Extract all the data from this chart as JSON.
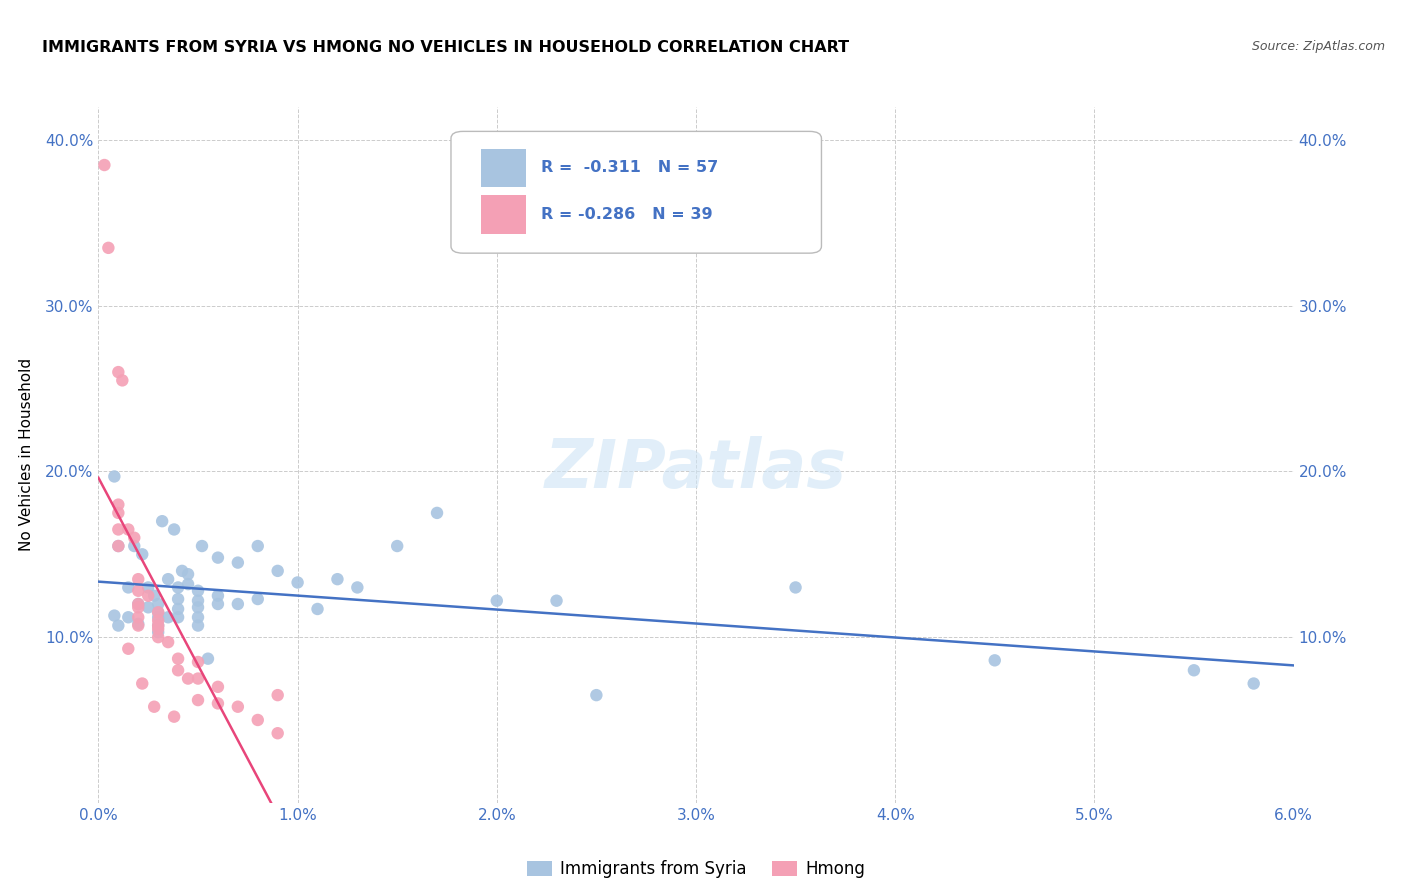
{
  "title": "IMMIGRANTS FROM SYRIA VS HMONG NO VEHICLES IN HOUSEHOLD CORRELATION CHART",
  "source": "Source: ZipAtlas.com",
  "ylabel": "No Vehicles in Household",
  "xlim": [
    0.0,
    0.06
  ],
  "ylim": [
    0.0,
    0.42
  ],
  "xticks": [
    0.0,
    0.01,
    0.02,
    0.03,
    0.04,
    0.05,
    0.06
  ],
  "yticks": [
    0.0,
    0.1,
    0.2,
    0.3,
    0.4
  ],
  "xtick_labels": [
    "0.0%",
    "1.0%",
    "2.0%",
    "3.0%",
    "4.0%",
    "5.0%",
    "6.0%"
  ],
  "ytick_labels": [
    "",
    "10.0%",
    "20.0%",
    "30.0%",
    "40.0%"
  ],
  "syria_color": "#a8c4e0",
  "hmong_color": "#f4a0b5",
  "syria_line_color": "#4472c4",
  "hmong_line_color": "#e8457a",
  "legend_syria_label": "Immigrants from Syria",
  "legend_hmong_label": "Hmong",
  "watermark": "ZIPatlas",
  "background_color": "#ffffff",
  "grid_color": "#cccccc",
  "axis_color": "#4472c4",
  "syria_x": [
    0.0008,
    0.0008,
    0.001,
    0.001,
    0.0015,
    0.0015,
    0.0018,
    0.002,
    0.002,
    0.0022,
    0.0025,
    0.0025,
    0.0028,
    0.003,
    0.003,
    0.003,
    0.003,
    0.003,
    0.0032,
    0.0035,
    0.0035,
    0.0038,
    0.004,
    0.004,
    0.004,
    0.004,
    0.0042,
    0.0045,
    0.0045,
    0.005,
    0.005,
    0.005,
    0.005,
    0.005,
    0.0052,
    0.0055,
    0.006,
    0.006,
    0.006,
    0.007,
    0.007,
    0.008,
    0.008,
    0.009,
    0.01,
    0.011,
    0.012,
    0.013,
    0.015,
    0.017,
    0.02,
    0.023,
    0.025,
    0.035,
    0.045,
    0.055,
    0.058
  ],
  "syria_y": [
    0.197,
    0.113,
    0.155,
    0.107,
    0.13,
    0.112,
    0.155,
    0.12,
    0.108,
    0.15,
    0.13,
    0.118,
    0.125,
    0.12,
    0.115,
    0.112,
    0.107,
    0.103,
    0.17,
    0.135,
    0.112,
    0.165,
    0.13,
    0.123,
    0.117,
    0.112,
    0.14,
    0.138,
    0.132,
    0.128,
    0.122,
    0.118,
    0.112,
    0.107,
    0.155,
    0.087,
    0.148,
    0.125,
    0.12,
    0.145,
    0.12,
    0.155,
    0.123,
    0.14,
    0.133,
    0.117,
    0.135,
    0.13,
    0.155,
    0.175,
    0.122,
    0.122,
    0.065,
    0.13,
    0.086,
    0.08,
    0.072
  ],
  "hmong_x": [
    0.0003,
    0.0005,
    0.001,
    0.001,
    0.001,
    0.001,
    0.001,
    0.0015,
    0.0018,
    0.002,
    0.002,
    0.002,
    0.002,
    0.002,
    0.002,
    0.0025,
    0.003,
    0.003,
    0.003,
    0.003,
    0.003,
    0.0035,
    0.004,
    0.004,
    0.0045,
    0.005,
    0.005,
    0.005,
    0.006,
    0.006,
    0.007,
    0.008,
    0.009,
    0.009,
    0.0012,
    0.0015,
    0.0022,
    0.0028,
    0.0038
  ],
  "hmong_y": [
    0.385,
    0.335,
    0.26,
    0.175,
    0.165,
    0.155,
    0.18,
    0.165,
    0.16,
    0.135,
    0.128,
    0.12,
    0.118,
    0.112,
    0.107,
    0.125,
    0.115,
    0.11,
    0.107,
    0.105,
    0.1,
    0.097,
    0.087,
    0.08,
    0.075,
    0.085,
    0.075,
    0.062,
    0.07,
    0.06,
    0.058,
    0.05,
    0.065,
    0.042,
    0.255,
    0.093,
    0.072,
    0.058,
    0.052
  ]
}
